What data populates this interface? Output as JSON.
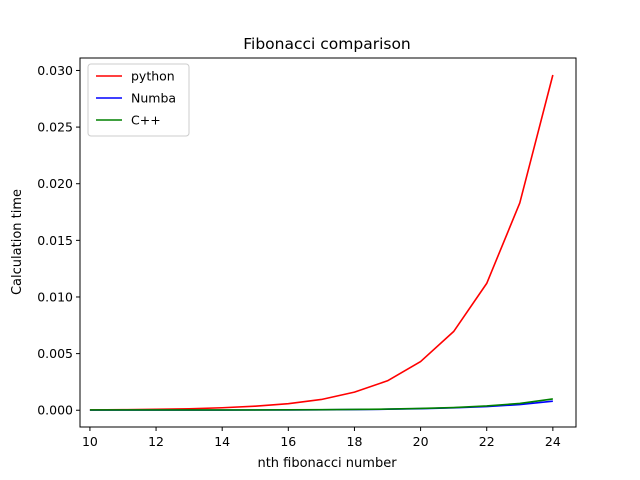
{
  "chart_data": {
    "type": "line",
    "title": "Fibonacci comparison",
    "xlabel": "nth fibonacci number",
    "ylabel": "Calculation time",
    "xlim": [
      9.7,
      24.7
    ],
    "ylim": [
      -0.00148,
      0.0311
    ],
    "xticks": [
      10,
      12,
      14,
      16,
      18,
      20,
      22,
      24
    ],
    "xtick_labels": [
      "10",
      "12",
      "14",
      "16",
      "18",
      "20",
      "22",
      "24"
    ],
    "yticks": [
      0.0,
      0.005,
      0.01,
      0.015,
      0.02,
      0.025,
      0.03
    ],
    "ytick_labels": [
      "0.000",
      "0.005",
      "0.010",
      "0.015",
      "0.020",
      "0.025",
      "0.030"
    ],
    "grid": false,
    "legend": "top-left",
    "x": [
      10,
      11,
      12,
      13,
      14,
      15,
      16,
      17,
      18,
      19,
      20,
      21,
      22,
      23,
      24
    ],
    "series": [
      {
        "name": "python",
        "color": "#ff0000",
        "values": [
          3e-05,
          5e-05,
          8e-05,
          0.00013,
          0.00022,
          0.00036,
          0.00058,
          0.00095,
          0.0016,
          0.0026,
          0.0043,
          0.00695,
          0.0112,
          0.0183,
          0.0296
        ]
      },
      {
        "name": "Numba",
        "color": "#0000ff",
        "values": [
          1e-05,
          1e-05,
          1e-05,
          1e-05,
          1e-05,
          2e-05,
          3e-05,
          4e-05,
          6e-05,
          9e-05,
          0.00014,
          0.00021,
          0.00032,
          0.0005,
          0.0008
        ]
      },
      {
        "name": "C++",
        "color": "#008000",
        "values": [
          3e-05,
          3e-05,
          3e-05,
          3e-05,
          3e-05,
          3e-05,
          4e-05,
          5e-05,
          7e-05,
          0.0001,
          0.00016,
          0.00024,
          0.00038,
          0.0006,
          0.001
        ]
      }
    ]
  }
}
